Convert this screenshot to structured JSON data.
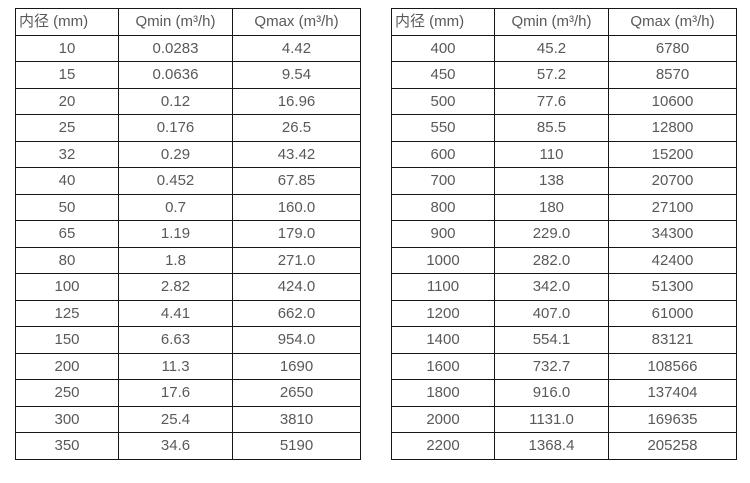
{
  "colors": {
    "background": "#ffffff",
    "text": "#595959",
    "border": "#161616"
  },
  "tables": [
    {
      "name": "flow-table-small-diameters",
      "headers": [
        "内径 (mm)",
        "Qmin (m³/h)",
        "Qmax (m³/h)"
      ],
      "rows": [
        [
          "10",
          "0.0283",
          "4.42"
        ],
        [
          "15",
          "0.0636",
          "9.54"
        ],
        [
          "20",
          "0.12",
          "16.96"
        ],
        [
          "25",
          "0.176",
          "26.5"
        ],
        [
          "32",
          "0.29",
          "43.42"
        ],
        [
          "40",
          "0.452",
          "67.85"
        ],
        [
          "50",
          "0.7",
          "160.0"
        ],
        [
          "65",
          "1.19",
          "179.0"
        ],
        [
          "80",
          "1.8",
          "271.0"
        ],
        [
          "100",
          "2.82",
          "424.0"
        ],
        [
          "125",
          "4.41",
          "662.0"
        ],
        [
          "150",
          "6.63",
          "954.0"
        ],
        [
          "200",
          "11.3",
          "1690"
        ],
        [
          "250",
          "17.6",
          "2650"
        ],
        [
          "300",
          "25.4",
          "3810"
        ],
        [
          "350",
          "34.6",
          "5190"
        ]
      ]
    },
    {
      "name": "flow-table-large-diameters",
      "headers": [
        "内径 (mm)",
        "Qmin (m³/h)",
        "Qmax (m³/h)"
      ],
      "rows": [
        [
          "400",
          "45.2",
          "6780"
        ],
        [
          "450",
          "57.2",
          "8570"
        ],
        [
          "500",
          "77.6",
          "10600"
        ],
        [
          "550",
          "85.5",
          "12800"
        ],
        [
          "600",
          "110",
          "15200"
        ],
        [
          "700",
          "138",
          "20700"
        ],
        [
          "800",
          "180",
          "27100"
        ],
        [
          "900",
          "229.0",
          "34300"
        ],
        [
          "1000",
          "282.0",
          "42400"
        ],
        [
          "1100",
          "342.0",
          "51300"
        ],
        [
          "1200",
          "407.0",
          "61000"
        ],
        [
          "1400",
          "554.1",
          "83121"
        ],
        [
          "1600",
          "732.7",
          "108566"
        ],
        [
          "1800",
          "916.0",
          "137404"
        ],
        [
          "2000",
          "1131.0",
          "169635"
        ],
        [
          "2200",
          "1368.4",
          "205258"
        ]
      ]
    }
  ]
}
